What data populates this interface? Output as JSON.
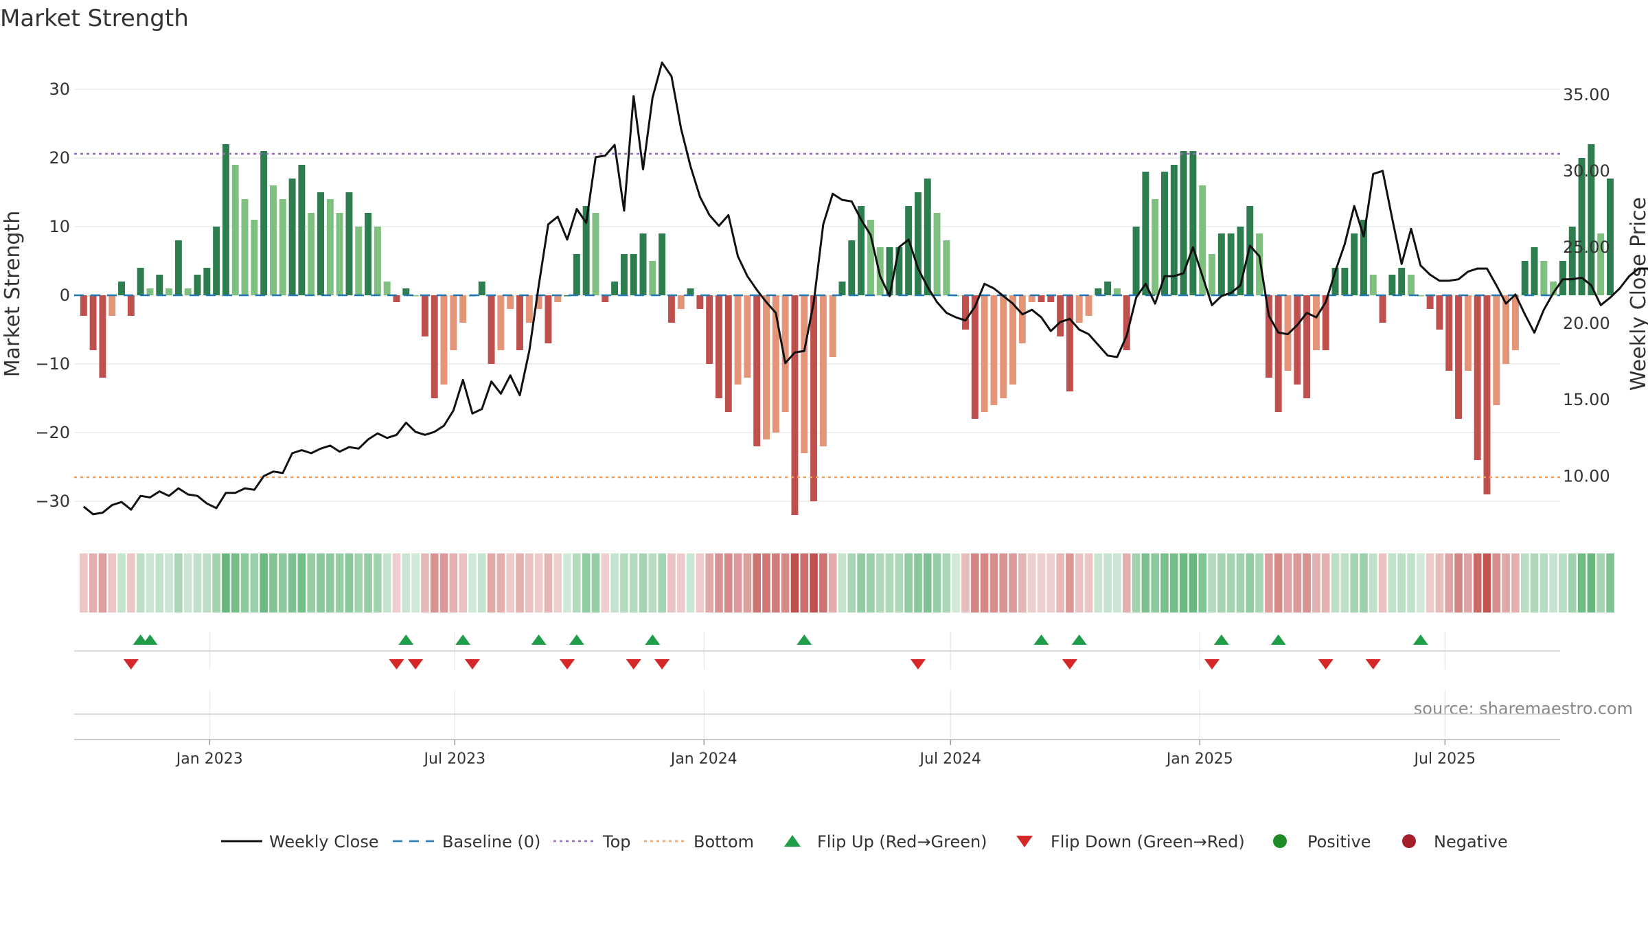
{
  "chart_data": {
    "type": "bar",
    "title": "Market Strength",
    "ylabel_left": "Market Strength",
    "ylabel_right": "Weekly Close Price",
    "source": "source: sharemaestro.com",
    "left_axis": {
      "ylim": [
        -35,
        35
      ],
      "ticks": [
        30,
        20,
        10,
        0,
        -10,
        -20,
        -30
      ],
      "tick_labels": [
        "30",
        "20",
        "10",
        "0",
        "−10",
        "−20",
        "−30"
      ]
    },
    "right_axis": {
      "ylim": [
        6.1,
        37.6
      ],
      "ticks": [
        35,
        30,
        25,
        20,
        15,
        10
      ],
      "tick_labels": [
        "35.00",
        "30.00",
        "25.00",
        "20.00",
        "15.00",
        "10.00"
      ]
    },
    "x_range": {
      "start": "2022-09-23",
      "end": "2025-09-24"
    },
    "x_ticks": [
      {
        "date": "2023-01-01",
        "label": "Jan 2023"
      },
      {
        "date": "2023-07-01",
        "label": "Jul 2023"
      },
      {
        "date": "2024-01-01",
        "label": "Jan 2024"
      },
      {
        "date": "2024-07-01",
        "label": "Jul 2024"
      },
      {
        "date": "2025-01-01",
        "label": "Jan 2025"
      },
      {
        "date": "2025-07-01",
        "label": "Jul 2025"
      }
    ],
    "top_line": 20.6,
    "bottom_line": -26.5,
    "baseline": 0,
    "first_week": "2022-09-30",
    "week_interval_days": 7,
    "strength_values": [
      -3,
      -8,
      -12,
      -3,
      2,
      -3,
      4,
      1,
      3,
      1,
      8,
      1,
      3,
      4,
      10,
      22,
      19,
      14,
      11,
      21,
      16,
      14,
      17,
      19,
      12,
      15,
      14,
      12,
      15,
      10,
      12,
      10,
      2,
      -1,
      1,
      0,
      -6,
      -15,
      -13,
      -8,
      -4,
      0,
      2,
      -10,
      -8,
      -2,
      -8,
      -4,
      -2,
      -7,
      -1,
      0,
      6,
      13,
      12,
      -1,
      2,
      6,
      6,
      9,
      5,
      9,
      -4,
      -2,
      1,
      -2,
      -10,
      -15,
      -17,
      -13,
      -12,
      -22,
      -21,
      -20,
      -17,
      -32,
      -23,
      -30,
      -22,
      -9,
      2,
      8,
      13,
      11,
      7,
      7,
      7,
      13,
      15,
      17,
      12,
      8,
      0,
      -5,
      -18,
      -17,
      -16,
      -15,
      -13,
      -7,
      -1,
      -1,
      -1,
      -6,
      -14,
      -4,
      -3,
      1,
      2,
      1,
      -8,
      10,
      18,
      14,
      18,
      19,
      21,
      21,
      16,
      6,
      9,
      9,
      10,
      13,
      9,
      -12,
      -17,
      -11,
      -13,
      -15,
      -8,
      -8,
      4,
      4,
      9,
      11,
      3,
      -4,
      3,
      4,
      3,
      0,
      -2,
      -5,
      -11,
      -18,
      -11,
      -24,
      -29,
      -16,
      -10,
      -8,
      5,
      7,
      5,
      2,
      5,
      10,
      20,
      22,
      9,
      17
    ],
    "weekly_close": [
      8.0,
      7.5,
      7.6,
      8.1,
      8.3,
      7.8,
      8.7,
      8.6,
      9.0,
      8.7,
      9.2,
      8.8,
      8.7,
      8.2,
      7.9,
      8.9,
      8.9,
      9.2,
      9.1,
      10.0,
      10.3,
      10.2,
      11.5,
      11.7,
      11.5,
      11.8,
      12.0,
      11.6,
      11.9,
      11.8,
      12.4,
      12.8,
      12.5,
      12.7,
      13.5,
      12.9,
      12.7,
      12.9,
      13.3,
      14.3,
      16.3,
      14.1,
      14.4,
      16.2,
      15.4,
      16.6,
      15.3,
      18.2,
      22.5,
      26.5,
      27.0,
      25.5,
      27.5,
      26.6,
      30.9,
      31.0,
      31.7,
      27.4,
      34.9,
      30.1,
      34.8,
      37.1,
      36.2,
      32.8,
      30.3,
      28.3,
      27.1,
      26.4,
      27.1,
      24.4,
      23.1,
      22.2,
      21.4,
      20.7,
      17.4,
      18.1,
      18.2,
      21.4,
      26.5,
      28.5,
      28.1,
      28.0,
      26.8,
      25.8,
      23.1,
      21.8,
      25.0,
      25.5,
      23.6,
      22.4,
      21.4,
      20.7,
      20.4,
      20.2,
      21.1,
      22.6,
      22.3,
      21.8,
      21.3,
      20.6,
      20.9,
      20.4,
      19.5,
      20.1,
      20.3,
      19.6,
      19.3,
      18.6,
      17.9,
      17.8,
      19.2,
      21.7,
      22.6,
      21.3,
      23.1,
      23.1,
      23.3,
      25.0,
      23.1,
      21.2,
      21.8,
      22.0,
      22.5,
      25.1,
      24.4,
      20.5,
      19.4,
      19.3,
      19.9,
      20.7,
      20.4,
      21.4,
      23.4,
      25.2,
      27.7,
      25.7,
      29.8,
      30.0,
      26.9,
      23.9,
      26.2,
      23.8,
      23.2,
      22.8,
      22.8,
      22.9,
      23.4,
      23.6,
      23.6,
      22.5,
      21.3,
      21.9,
      20.6,
      19.4,
      20.9,
      22.0,
      22.9,
      22.9,
      23.0,
      22.5,
      21.2,
      21.7,
      22.3,
      23.1,
      23.6,
      23.6,
      22.0,
      23.0
    ],
    "flip_up_weeks": [
      6,
      7,
      34,
      40,
      48,
      52,
      60,
      76,
      101,
      105,
      120,
      126,
      141
    ],
    "flip_down_weeks": [
      5,
      33,
      35,
      41,
      51,
      58,
      61,
      88,
      104,
      119,
      131,
      136
    ],
    "colors": {
      "pos_dark": "#2e7d4f",
      "pos_light": "#7fbf7f",
      "neg_dark": "#c0504d",
      "neg_light": "#e59577",
      "top": "#9467bd",
      "bottom": "#f4a261",
      "baseline": "#1f77b4",
      "line": "#111111",
      "flip_up": "#1f9d48",
      "flip_down": "#d62728",
      "grid": "#e6e6e6",
      "positive_dot": "#1f8b24",
      "negative_dot": "#a5202a"
    },
    "legend": [
      {
        "key": "line",
        "label": "Weekly Close"
      },
      {
        "key": "baseline",
        "label": "Baseline (0)"
      },
      {
        "key": "top",
        "label": "Top"
      },
      {
        "key": "bottom",
        "label": "Bottom"
      },
      {
        "key": "flip_up",
        "label": "Flip Up (Red→Green)"
      },
      {
        "key": "flip_down",
        "label": "Flip Down (Green→Red)"
      },
      {
        "key": "positive_dot",
        "label": "Positive"
      },
      {
        "key": "negative_dot",
        "label": "Negative"
      }
    ]
  }
}
